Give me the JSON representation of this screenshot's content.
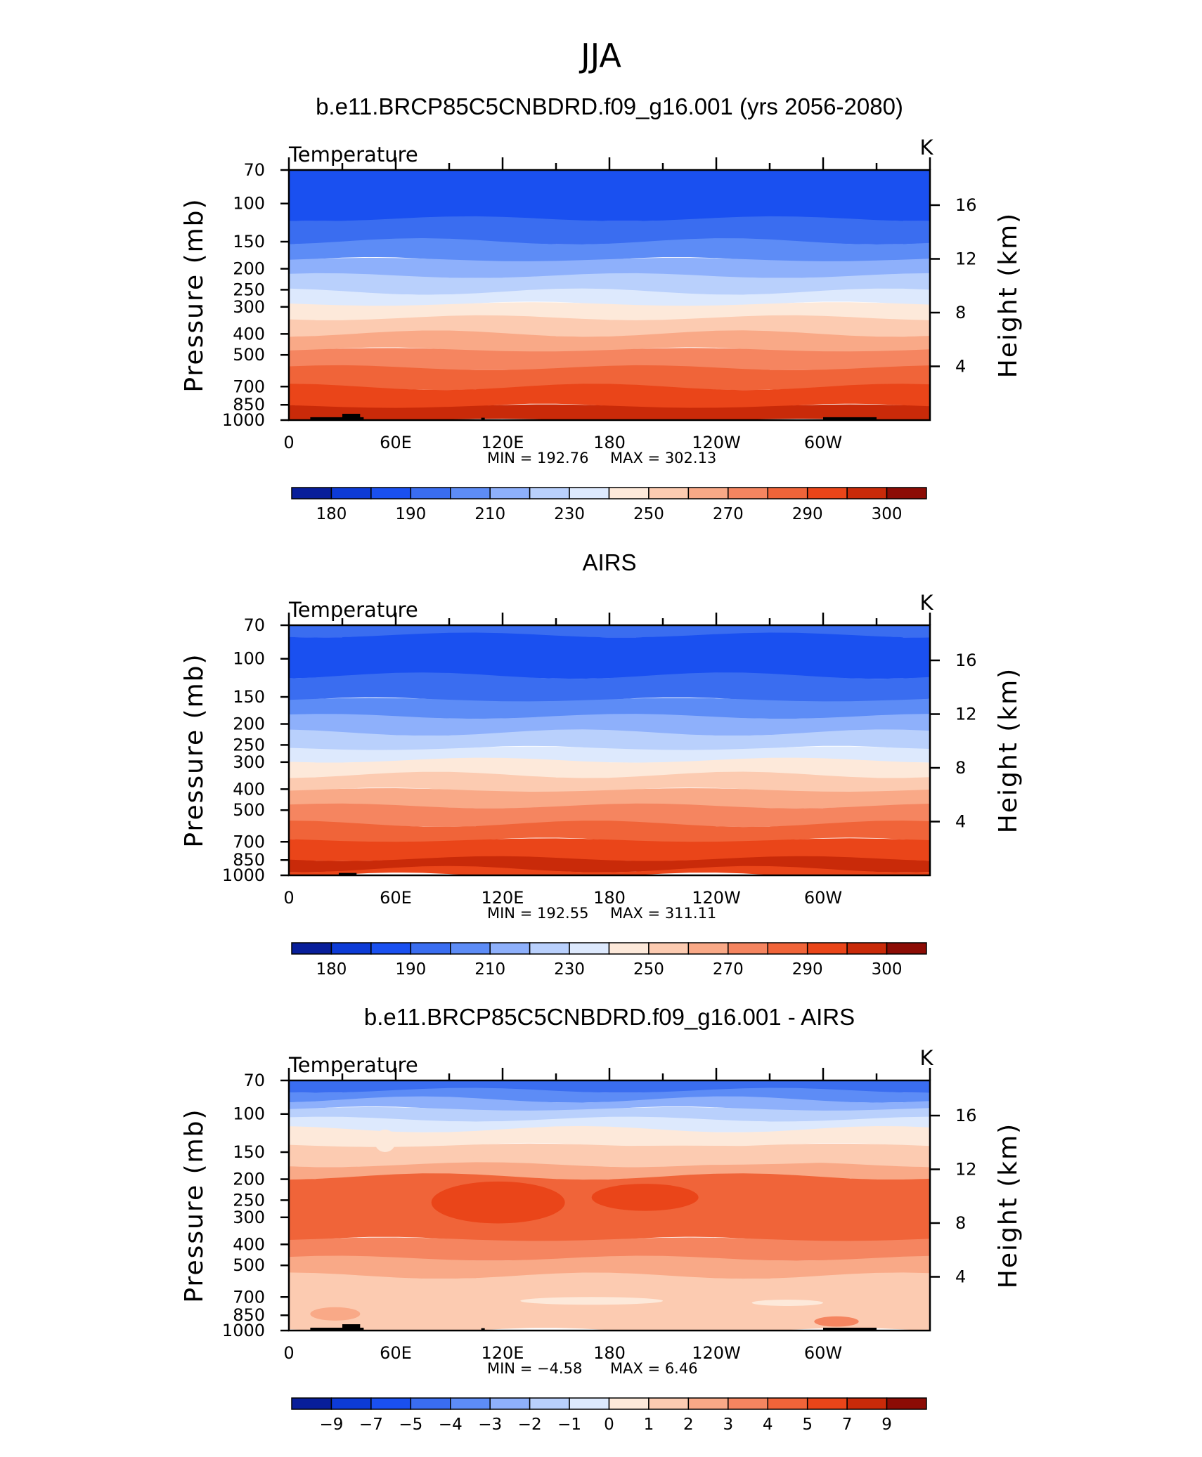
{
  "figure": {
    "title": "JJA"
  },
  "chart_data": [
    {
      "type": "heatmap",
      "title": "b.e11.BRCP85C5CNBDRD.f09_g16.001 (yrs 2056-2080)",
      "variable": "Temperature",
      "units": "K",
      "xlabel": "",
      "ylabel": "Pressure (mb)",
      "ylabel_right": "Height (km)",
      "x_ticks": [
        "0",
        "60E",
        "120E",
        "180",
        "120W",
        "60W"
      ],
      "y_ticks": [
        "70",
        "100",
        "150",
        "200",
        "250",
        "300",
        "400",
        "500",
        "700",
        "850",
        "1000"
      ],
      "y_ticks_right": [
        "16",
        "12",
        "8",
        "4"
      ],
      "y_scale": "log pressure",
      "ylim": [
        1000,
        70
      ],
      "min_label": "MIN  =  192.76",
      "max_label": "MAX  =  302.13",
      "min": 192.76,
      "max": 302.13,
      "colorbar_labels": [
        "180",
        "190",
        "210",
        "230",
        "250",
        "270",
        "290",
        "300"
      ],
      "colorbar_colors": [
        "#081e9a",
        "#0d3bd6",
        "#1a50f0",
        "#3a6df0",
        "#5d8cf6",
        "#8eb0fb",
        "#b9d0fc",
        "#dde9fd",
        "#fde9da",
        "#fccbb1",
        "#f9a987",
        "#f58560",
        "#f06439",
        "#ea4519",
        "#c92a09",
        "#8c0c05"
      ],
      "bands": [
        {
          "p_top": 70,
          "p_bot": 118,
          "color": "#1a50f0"
        },
        {
          "p_top": 118,
          "p_bot": 150,
          "color": "#3a6df0"
        },
        {
          "p_top": 150,
          "p_bot": 182,
          "color": "#5d8cf6"
        },
        {
          "p_top": 182,
          "p_bot": 216,
          "color": "#8eb0fb"
        },
        {
          "p_top": 216,
          "p_bot": 256,
          "color": "#b9d0fc"
        },
        {
          "p_top": 256,
          "p_bot": 292,
          "color": "#dde9fd"
        },
        {
          "p_top": 292,
          "p_bot": 338,
          "color": "#fde9da"
        },
        {
          "p_top": 338,
          "p_bot": 400,
          "color": "#fccbb1"
        },
        {
          "p_top": 400,
          "p_bot": 475,
          "color": "#f9a987"
        },
        {
          "p_top": 475,
          "p_bot": 575,
          "color": "#f58560"
        },
        {
          "p_top": 575,
          "p_bot": 705,
          "color": "#f06439"
        },
        {
          "p_top": 705,
          "p_bot": 865,
          "color": "#ea4519"
        },
        {
          "p_top": 865,
          "p_bot": 1000,
          "color": "#c92a09"
        }
      ]
    },
    {
      "type": "heatmap",
      "title": "AIRS",
      "variable": "Temperature",
      "units": "K",
      "xlabel": "",
      "ylabel": "Pressure (mb)",
      "ylabel_right": "Height (km)",
      "x_ticks": [
        "0",
        "60E",
        "120E",
        "180",
        "120W",
        "60W"
      ],
      "y_ticks": [
        "70",
        "100",
        "150",
        "200",
        "250",
        "300",
        "400",
        "500",
        "700",
        "850",
        "1000"
      ],
      "y_ticks_right": [
        "16",
        "12",
        "8",
        "4"
      ],
      "y_scale": "log pressure",
      "ylim": [
        1000,
        70
      ],
      "min_label": "MIN  =  192.55",
      "max_label": "MAX  =  311.11",
      "min": 192.55,
      "max": 311.11,
      "colorbar_labels": [
        "180",
        "190",
        "210",
        "230",
        "250",
        "270",
        "290",
        "300"
      ],
      "colorbar_colors": [
        "#081e9a",
        "#0d3bd6",
        "#1a50f0",
        "#3a6df0",
        "#5d8cf6",
        "#8eb0fb",
        "#b9d0fc",
        "#dde9fd",
        "#fde9da",
        "#fccbb1",
        "#f9a987",
        "#f58560",
        "#f06439",
        "#ea4519",
        "#c92a09",
        "#8c0c05"
      ],
      "bands": [
        {
          "p_top": 70,
          "p_bot": 78,
          "color": "#3a6df0"
        },
        {
          "p_top": 78,
          "p_bot": 120,
          "color": "#1a50f0"
        },
        {
          "p_top": 120,
          "p_bot": 155,
          "color": "#3a6df0"
        },
        {
          "p_top": 155,
          "p_bot": 185,
          "color": "#5d8cf6"
        },
        {
          "p_top": 185,
          "p_bot": 220,
          "color": "#8eb0fb"
        },
        {
          "p_top": 220,
          "p_bot": 260,
          "color": "#b9d0fc"
        },
        {
          "p_top": 260,
          "p_bot": 295,
          "color": "#dde9fd"
        },
        {
          "p_top": 295,
          "p_bot": 345,
          "color": "#fde9da"
        },
        {
          "p_top": 345,
          "p_bot": 405,
          "color": "#fccbb1"
        },
        {
          "p_top": 405,
          "p_bot": 480,
          "color": "#f9a987"
        },
        {
          "p_top": 480,
          "p_bot": 580,
          "color": "#f58560"
        },
        {
          "p_top": 580,
          "p_bot": 690,
          "color": "#f06439"
        },
        {
          "p_top": 690,
          "p_bot": 840,
          "color": "#ea4519"
        },
        {
          "p_top": 840,
          "p_bot": 940,
          "color": "#c92a09"
        },
        {
          "p_top": 940,
          "p_bot": 1000,
          "color": "#ea4519"
        }
      ]
    },
    {
      "type": "heatmap",
      "title": "b.e11.BRCP85C5CNBDRD.f09_g16.001 - AIRS",
      "variable": "Temperature",
      "units": "K",
      "xlabel": "",
      "ylabel": "Pressure (mb)",
      "ylabel_right": "Height (km)",
      "x_ticks": [
        "0",
        "60E",
        "120E",
        "180",
        "120W",
        "60W"
      ],
      "y_ticks": [
        "70",
        "100",
        "150",
        "200",
        "250",
        "300",
        "400",
        "500",
        "700",
        "850",
        "1000"
      ],
      "y_ticks_right": [
        "16",
        "12",
        "8",
        "4"
      ],
      "y_scale": "log pressure",
      "ylim": [
        1000,
        70
      ],
      "min_label": "MIN  =    −4.58",
      "max_label": "MAX  =      6.46",
      "min": -4.58,
      "max": 6.46,
      "colorbar_labels": [
        "−9",
        "−7",
        "−5",
        "−4",
        "−3",
        "−2",
        "−1",
        "0",
        "1",
        "2",
        "3",
        "4",
        "5",
        "7",
        "9"
      ],
      "colorbar_colors": [
        "#081e9a",
        "#0d3bd6",
        "#1a50f0",
        "#3a6df0",
        "#5d8cf6",
        "#8eb0fb",
        "#b9d0fc",
        "#dde9fd",
        "#fde9da",
        "#fccbb1",
        "#f9a987",
        "#f58560",
        "#f06439",
        "#ea4519",
        "#c92a09",
        "#8c0c05"
      ],
      "bands": [
        {
          "p_top": 70,
          "p_bot": 78,
          "color": "#3a6df0"
        },
        {
          "p_top": 78,
          "p_bot": 86,
          "color": "#5d8cf6"
        },
        {
          "p_top": 86,
          "p_bot": 95,
          "color": "#8eb0fb"
        },
        {
          "p_top": 95,
          "p_bot": 106,
          "color": "#b9d0fc"
        },
        {
          "p_top": 106,
          "p_bot": 118,
          "color": "#dde9fd"
        },
        {
          "p_top": 118,
          "p_bot": 140,
          "color": "#fde9da"
        },
        {
          "p_top": 140,
          "p_bot": 172,
          "color": "#fccbb1"
        },
        {
          "p_top": 172,
          "p_bot": 195,
          "color": "#f9a987"
        },
        {
          "p_top": 195,
          "p_bot": 380,
          "color": "#f06439"
        },
        {
          "p_top": 380,
          "p_bot": 465,
          "color": "#f58560"
        },
        {
          "p_top": 465,
          "p_bot": 560,
          "color": "#f9a987"
        },
        {
          "p_top": 560,
          "p_bot": 1000,
          "color": "#fccbb1"
        }
      ],
      "features": [
        {
          "lon_start": 80,
          "lon_end": 155,
          "p_top": 205,
          "p_bot": 320,
          "color": "#ea4519"
        },
        {
          "lon_start": 170,
          "lon_end": 230,
          "p_top": 210,
          "p_bot": 280,
          "color": "#ea4519"
        },
        {
          "lon_start": 48,
          "lon_end": 60,
          "p_top": 118,
          "p_bot": 150,
          "color": "#fde9da"
        },
        {
          "lon_start": 100,
          "lon_end": 340,
          "p_top": 140,
          "p_bot": 172,
          "color": "#fccbb1"
        },
        {
          "lon_start": 130,
          "lon_end": 210,
          "p_top": 700,
          "p_bot": 760,
          "color": "#fde9da"
        },
        {
          "lon_start": 260,
          "lon_end": 300,
          "p_top": 720,
          "p_bot": 770,
          "color": "#fde9da"
        },
        {
          "lon_start": 12,
          "lon_end": 40,
          "p_top": 780,
          "p_bot": 900,
          "color": "#f9a987"
        },
        {
          "lon_start": 295,
          "lon_end": 320,
          "p_top": 860,
          "p_bot": 960,
          "color": "#f58560"
        }
      ]
    }
  ]
}
